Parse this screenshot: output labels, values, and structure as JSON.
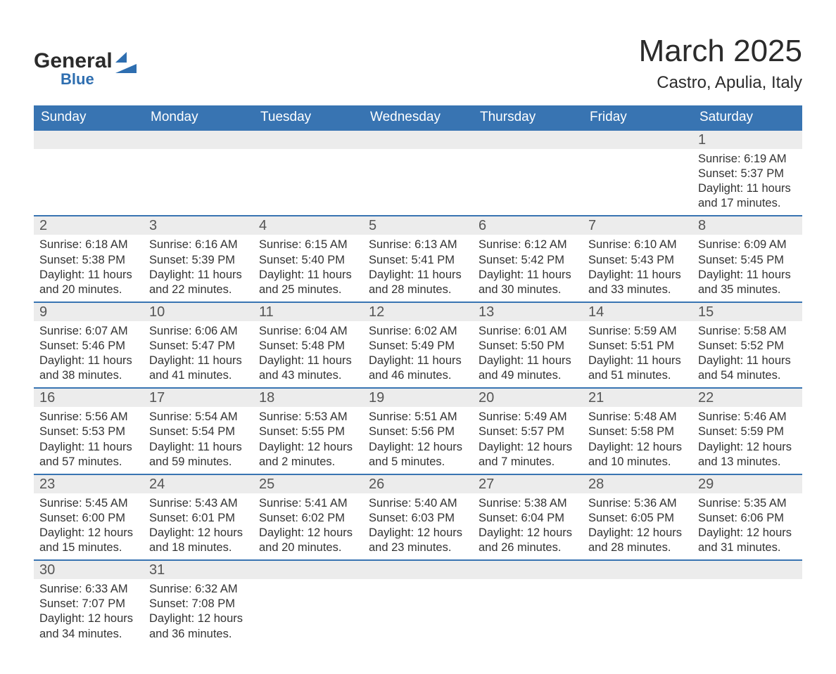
{
  "logo": {
    "text1": "General",
    "text2": "Blue"
  },
  "title": "March 2025",
  "location": "Castro, Apulia, Italy",
  "header_color": "#3874b2",
  "row_border_color": "#3874b2",
  "daynum_bg": "#ececec",
  "columns": [
    "Sunday",
    "Monday",
    "Tuesday",
    "Wednesday",
    "Thursday",
    "Friday",
    "Saturday"
  ],
  "labels": {
    "sunrise": "Sunrise:",
    "sunset": "Sunset:",
    "daylight": "Daylight:"
  },
  "weeks": [
    [
      null,
      null,
      null,
      null,
      null,
      null,
      {
        "n": 1,
        "sunrise": "6:19 AM",
        "sunset": "5:37 PM",
        "day_h": 11,
        "day_m": 17
      }
    ],
    [
      {
        "n": 2,
        "sunrise": "6:18 AM",
        "sunset": "5:38 PM",
        "day_h": 11,
        "day_m": 20
      },
      {
        "n": 3,
        "sunrise": "6:16 AM",
        "sunset": "5:39 PM",
        "day_h": 11,
        "day_m": 22
      },
      {
        "n": 4,
        "sunrise": "6:15 AM",
        "sunset": "5:40 PM",
        "day_h": 11,
        "day_m": 25
      },
      {
        "n": 5,
        "sunrise": "6:13 AM",
        "sunset": "5:41 PM",
        "day_h": 11,
        "day_m": 28
      },
      {
        "n": 6,
        "sunrise": "6:12 AM",
        "sunset": "5:42 PM",
        "day_h": 11,
        "day_m": 30
      },
      {
        "n": 7,
        "sunrise": "6:10 AM",
        "sunset": "5:43 PM",
        "day_h": 11,
        "day_m": 33
      },
      {
        "n": 8,
        "sunrise": "6:09 AM",
        "sunset": "5:45 PM",
        "day_h": 11,
        "day_m": 35
      }
    ],
    [
      {
        "n": 9,
        "sunrise": "6:07 AM",
        "sunset": "5:46 PM",
        "day_h": 11,
        "day_m": 38
      },
      {
        "n": 10,
        "sunrise": "6:06 AM",
        "sunset": "5:47 PM",
        "day_h": 11,
        "day_m": 41
      },
      {
        "n": 11,
        "sunrise": "6:04 AM",
        "sunset": "5:48 PM",
        "day_h": 11,
        "day_m": 43
      },
      {
        "n": 12,
        "sunrise": "6:02 AM",
        "sunset": "5:49 PM",
        "day_h": 11,
        "day_m": 46
      },
      {
        "n": 13,
        "sunrise": "6:01 AM",
        "sunset": "5:50 PM",
        "day_h": 11,
        "day_m": 49
      },
      {
        "n": 14,
        "sunrise": "5:59 AM",
        "sunset": "5:51 PM",
        "day_h": 11,
        "day_m": 51
      },
      {
        "n": 15,
        "sunrise": "5:58 AM",
        "sunset": "5:52 PM",
        "day_h": 11,
        "day_m": 54
      }
    ],
    [
      {
        "n": 16,
        "sunrise": "5:56 AM",
        "sunset": "5:53 PM",
        "day_h": 11,
        "day_m": 57
      },
      {
        "n": 17,
        "sunrise": "5:54 AM",
        "sunset": "5:54 PM",
        "day_h": 11,
        "day_m": 59
      },
      {
        "n": 18,
        "sunrise": "5:53 AM",
        "sunset": "5:55 PM",
        "day_h": 12,
        "day_m": 2
      },
      {
        "n": 19,
        "sunrise": "5:51 AM",
        "sunset": "5:56 PM",
        "day_h": 12,
        "day_m": 5
      },
      {
        "n": 20,
        "sunrise": "5:49 AM",
        "sunset": "5:57 PM",
        "day_h": 12,
        "day_m": 7
      },
      {
        "n": 21,
        "sunrise": "5:48 AM",
        "sunset": "5:58 PM",
        "day_h": 12,
        "day_m": 10
      },
      {
        "n": 22,
        "sunrise": "5:46 AM",
        "sunset": "5:59 PM",
        "day_h": 12,
        "day_m": 13
      }
    ],
    [
      {
        "n": 23,
        "sunrise": "5:45 AM",
        "sunset": "6:00 PM",
        "day_h": 12,
        "day_m": 15
      },
      {
        "n": 24,
        "sunrise": "5:43 AM",
        "sunset": "6:01 PM",
        "day_h": 12,
        "day_m": 18
      },
      {
        "n": 25,
        "sunrise": "5:41 AM",
        "sunset": "6:02 PM",
        "day_h": 12,
        "day_m": 20
      },
      {
        "n": 26,
        "sunrise": "5:40 AM",
        "sunset": "6:03 PM",
        "day_h": 12,
        "day_m": 23
      },
      {
        "n": 27,
        "sunrise": "5:38 AM",
        "sunset": "6:04 PM",
        "day_h": 12,
        "day_m": 26
      },
      {
        "n": 28,
        "sunrise": "5:36 AM",
        "sunset": "6:05 PM",
        "day_h": 12,
        "day_m": 28
      },
      {
        "n": 29,
        "sunrise": "5:35 AM",
        "sunset": "6:06 PM",
        "day_h": 12,
        "day_m": 31
      }
    ],
    [
      {
        "n": 30,
        "sunrise": "6:33 AM",
        "sunset": "7:07 PM",
        "day_h": 12,
        "day_m": 34
      },
      {
        "n": 31,
        "sunrise": "6:32 AM",
        "sunset": "7:08 PM",
        "day_h": 12,
        "day_m": 36
      },
      null,
      null,
      null,
      null,
      null
    ]
  ]
}
